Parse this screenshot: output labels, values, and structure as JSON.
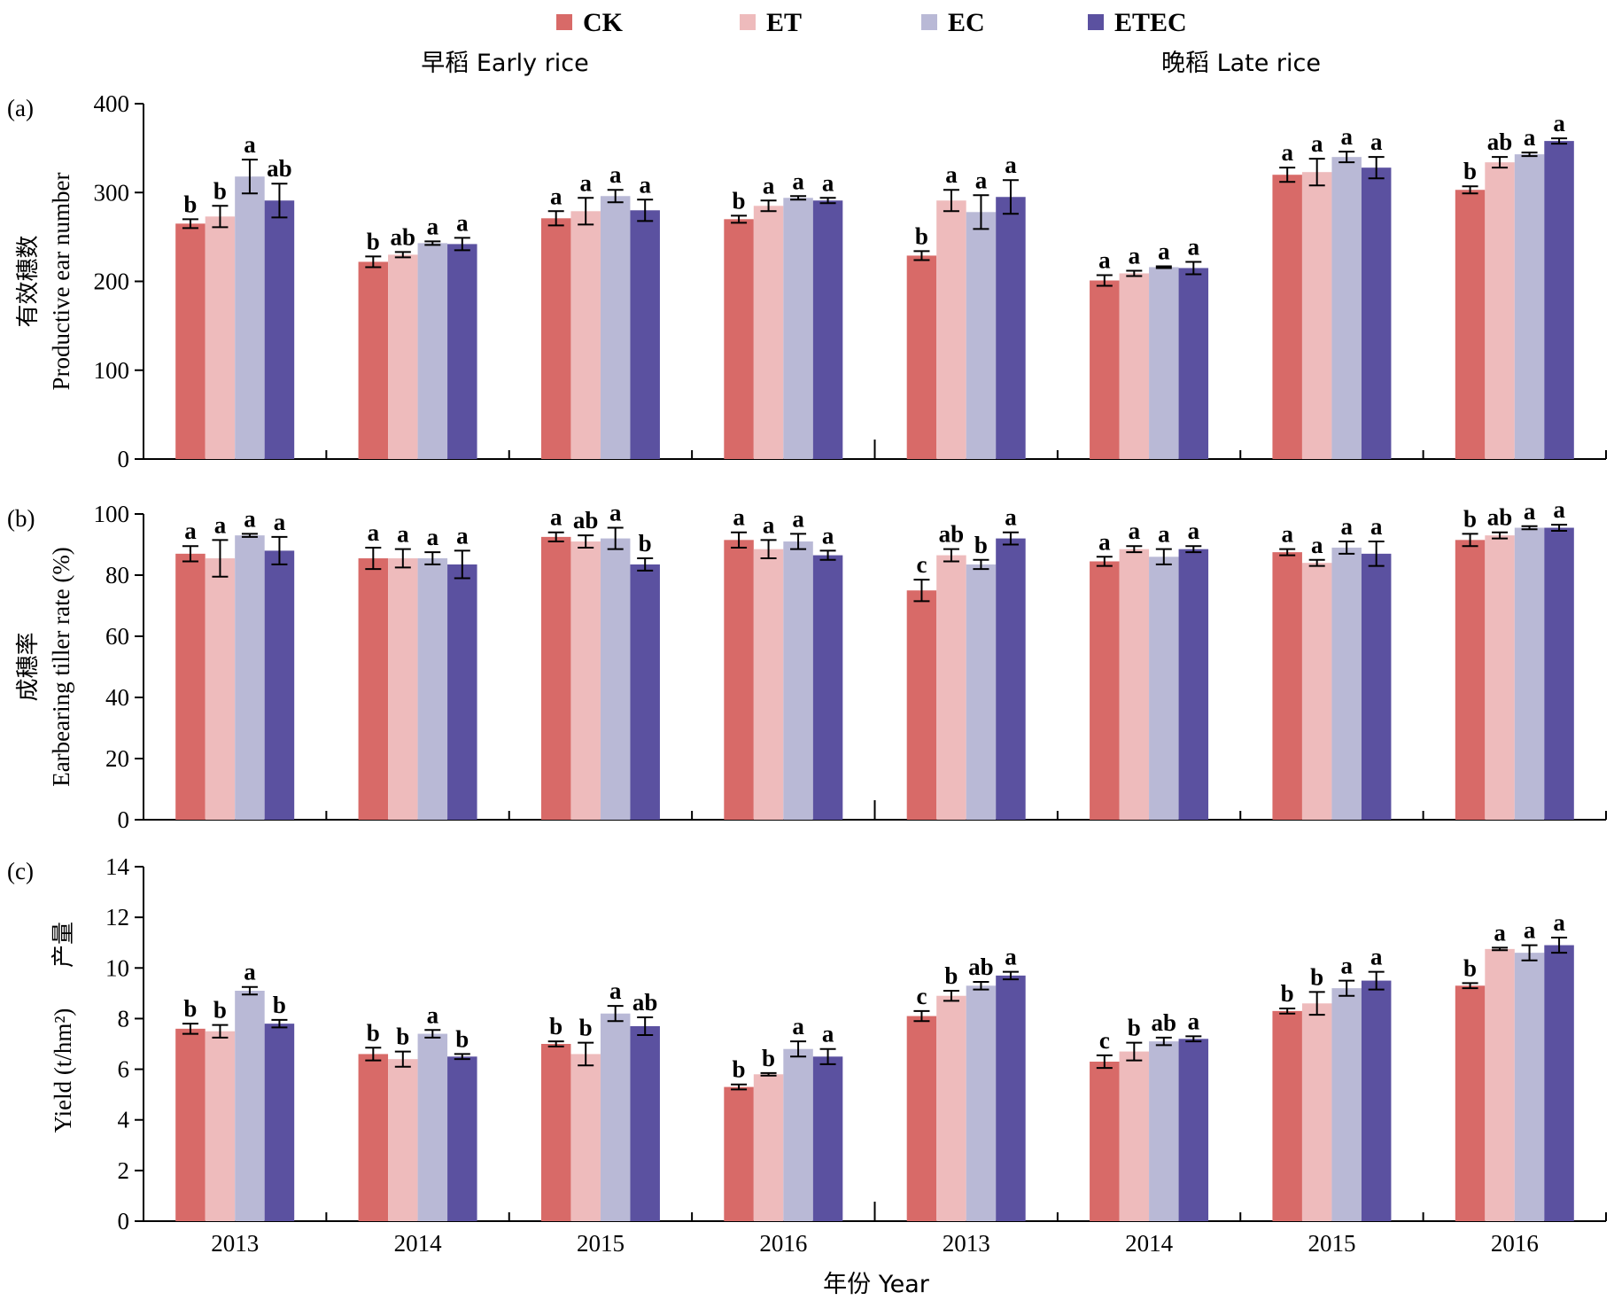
{
  "legend": [
    {
      "name": "CK",
      "color": "#d86a68"
    },
    {
      "name": "ET",
      "color": "#eebbbc"
    },
    {
      "name": "EC",
      "color": "#b9b9d6"
    },
    {
      "name": "ETEC",
      "color": "#5b51a0"
    }
  ],
  "headers": {
    "early": "早稻 Early rice",
    "late": "晚稻 Late rice"
  },
  "xlabel": "年份 Year",
  "categories": [
    "2013",
    "2014",
    "2015",
    "2016",
    "2013",
    "2014",
    "2015",
    "2016"
  ],
  "chart_data": [
    {
      "type": "bar",
      "panel_label": "(a)",
      "ylabel_cn": "有效穗数",
      "ylabel_en": "Productive ear number",
      "ylim": [
        0,
        400
      ],
      "yticks": [
        0,
        100,
        200,
        300,
        400
      ],
      "categories": [
        "2013",
        "2014",
        "2015",
        "2016",
        "2013",
        "2014",
        "2015",
        "2016"
      ],
      "series": [
        {
          "name": "CK",
          "values": [
            265,
            222,
            271,
            270,
            229,
            201,
            320,
            303
          ],
          "errors": [
            5,
            6,
            8,
            4,
            5,
            6,
            8,
            4
          ],
          "letters": [
            "b",
            "b",
            "a",
            "b",
            "b",
            "a",
            "a",
            "b"
          ]
        },
        {
          "name": "ET",
          "values": [
            273,
            230,
            279,
            285,
            291,
            209,
            323,
            334
          ],
          "errors": [
            12,
            3,
            15,
            6,
            12,
            3,
            15,
            6
          ],
          "letters": [
            "b",
            "ab",
            "a",
            "a",
            "a",
            "a",
            "a",
            "ab"
          ]
        },
        {
          "name": "EC",
          "values": [
            318,
            243,
            296,
            294,
            278,
            216,
            340,
            343
          ],
          "errors": [
            19,
            2,
            7,
            2,
            19,
            1,
            6,
            2
          ],
          "letters": [
            "a",
            "a",
            "a",
            "a",
            "a",
            "a",
            "a",
            "a"
          ]
        },
        {
          "name": "ETEC",
          "values": [
            291,
            242,
            280,
            291,
            295,
            215,
            328,
            358
          ],
          "errors": [
            19,
            7,
            12,
            3,
            19,
            7,
            12,
            3
          ],
          "letters": [
            "ab",
            "a",
            "a",
            "a",
            "a",
            "a",
            "a",
            "a"
          ]
        }
      ]
    },
    {
      "type": "bar",
      "panel_label": "(b)",
      "ylabel_cn": "成穗率",
      "ylabel_en": "Earbearing tiller rate (%)",
      "ylim": [
        0,
        100
      ],
      "yticks": [
        0,
        20,
        40,
        60,
        80,
        100
      ],
      "categories": [
        "2013",
        "2014",
        "2015",
        "2016",
        "2013",
        "2014",
        "2015",
        "2016"
      ],
      "series": [
        {
          "name": "CK",
          "values": [
            87,
            85.5,
            92.5,
            91.5,
            75,
            84.5,
            87.5,
            91.5
          ],
          "errors": [
            2.5,
            3.5,
            1.5,
            2.5,
            3.5,
            1.5,
            1,
            2
          ],
          "letters": [
            "a",
            "a",
            "a",
            "a",
            "c",
            "a",
            "a",
            "b"
          ]
        },
        {
          "name": "ET",
          "values": [
            85.5,
            85.5,
            91,
            88.5,
            86.5,
            88.5,
            84,
            93
          ],
          "errors": [
            6,
            3,
            2,
            3,
            2,
            1,
            1,
            1
          ],
          "letters": [
            "a",
            "a",
            "ab",
            "a",
            "ab",
            "a",
            "a",
            "ab"
          ]
        },
        {
          "name": "EC",
          "values": [
            93,
            85.5,
            92,
            91,
            83.5,
            86,
            89,
            95.5
          ],
          "errors": [
            0.5,
            2,
            3.5,
            2.5,
            1.5,
            2.5,
            2,
            0.5
          ],
          "letters": [
            "a",
            "a",
            "a",
            "a",
            "b",
            "a",
            "a",
            "a"
          ]
        },
        {
          "name": "ETEC",
          "values": [
            88,
            83.5,
            83.5,
            86.5,
            92,
            88.5,
            87,
            95.5
          ],
          "errors": [
            4.5,
            4.5,
            2,
            1.5,
            2,
            1,
            4,
            1
          ],
          "letters": [
            "a",
            "a",
            "b",
            "a",
            "a",
            "a",
            "a",
            "a"
          ]
        }
      ]
    },
    {
      "type": "bar",
      "panel_label": "(c)",
      "ylabel_cn": "产量",
      "ylabel_en": "Yield (t/hm²)",
      "ylim": [
        0,
        14
      ],
      "yticks": [
        0,
        2,
        4,
        6,
        8,
        10,
        12,
        14
      ],
      "categories": [
        "2013",
        "2014",
        "2015",
        "2016",
        "2013",
        "2014",
        "2015",
        "2016"
      ],
      "series": [
        {
          "name": "CK",
          "values": [
            7.6,
            6.6,
            7.0,
            5.3,
            8.1,
            6.3,
            8.3,
            9.3
          ],
          "errors": [
            0.2,
            0.25,
            0.1,
            0.1,
            0.2,
            0.25,
            0.1,
            0.1
          ],
          "letters": [
            "b",
            "b",
            "b",
            "b",
            "c",
            "c",
            "b",
            "b"
          ]
        },
        {
          "name": "ET",
          "values": [
            7.5,
            6.4,
            6.6,
            5.8,
            8.9,
            6.7,
            8.6,
            10.75
          ],
          "errors": [
            0.25,
            0.3,
            0.45,
            0.05,
            0.2,
            0.35,
            0.45,
            0.05
          ],
          "letters": [
            "b",
            "b",
            "b",
            "b",
            "b",
            "b",
            "b",
            "a"
          ]
        },
        {
          "name": "EC",
          "values": [
            9.1,
            7.4,
            8.2,
            6.8,
            9.3,
            7.1,
            9.2,
            10.6
          ],
          "errors": [
            0.15,
            0.15,
            0.3,
            0.3,
            0.15,
            0.15,
            0.3,
            0.3
          ],
          "letters": [
            "a",
            "a",
            "a",
            "a",
            "ab",
            "ab",
            "a",
            "a"
          ]
        },
        {
          "name": "ETEC",
          "values": [
            7.8,
            6.5,
            7.7,
            6.5,
            9.7,
            7.2,
            9.5,
            10.9
          ],
          "errors": [
            0.15,
            0.1,
            0.35,
            0.3,
            0.15,
            0.1,
            0.35,
            0.3
          ],
          "letters": [
            "b",
            "b",
            "ab",
            "a",
            "a",
            "a",
            "a",
            "a"
          ]
        }
      ]
    }
  ]
}
